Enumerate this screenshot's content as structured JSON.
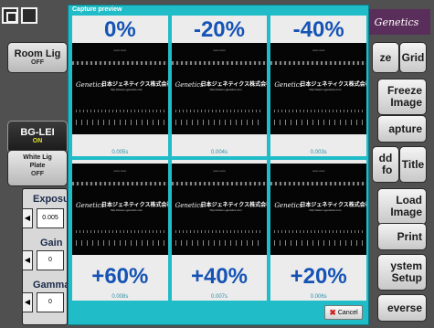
{
  "dialog": {
    "title": "Capture preview",
    "cancel_label": "Cancel",
    "cells": [
      {
        "pct": "0%",
        "time": "0.005s",
        "logo": "Genetics",
        "jp": "日本ジェネティクス株式会社",
        "url": "http://www.n-genetics.com"
      },
      {
        "pct": "-20%",
        "time": "0.004s",
        "logo": "Genetics",
        "jp": "日本ジェネティクス株式会社",
        "url": "http://www.n-genetics.com"
      },
      {
        "pct": "-40%",
        "time": "0.003s",
        "logo": "Genetics",
        "jp": "日本ジェネティクス株式会社",
        "url": "http://www.n-genetics.com"
      },
      {
        "pct": "+60%",
        "time": "0.008s",
        "logo": "Genetics",
        "jp": "日本ジェネティクス株式会社",
        "url": "http://www.n-genetics.com"
      },
      {
        "pct": "+40%",
        "time": "0.007s",
        "logo": "Genetics",
        "jp": "日本ジェネティクス株式会社",
        "url": "http://www.n-genetics.com"
      },
      {
        "pct": "+20%",
        "time": "0.006s",
        "logo": "Genetics",
        "jp": "日本ジェネティクス株式会社",
        "url": "http://www.n-genetics.com"
      }
    ]
  },
  "brand": "Genetics",
  "left": {
    "room_light": {
      "label": "Room Lig",
      "sub": "OFF"
    },
    "bg_led": {
      "label": "BG-LEI",
      "sub": "ON"
    },
    "white_light": {
      "label": "White Lig",
      "label2": "Plate",
      "sub": "OFF"
    },
    "exposure": {
      "title": "Exposur",
      "value": "0.005"
    },
    "gain": {
      "title": "Gain",
      "value": "0"
    },
    "gamma": {
      "title": "Gamma",
      "value": "0"
    }
  },
  "right": {
    "freeze": "ze",
    "grid": "Grid",
    "freeze_image": "Freeze\nImage",
    "capture": "apture",
    "add_info": "dd\nfo",
    "title": "Title",
    "load_image": "Load\nImage",
    "print": "Print",
    "system_setup": "ystem\nSetup",
    "reverse": "everse"
  },
  "colors": {
    "dialog_bg": "#20bcc8",
    "pct_text": "#1553b5",
    "time_text": "#2a8fa6"
  }
}
